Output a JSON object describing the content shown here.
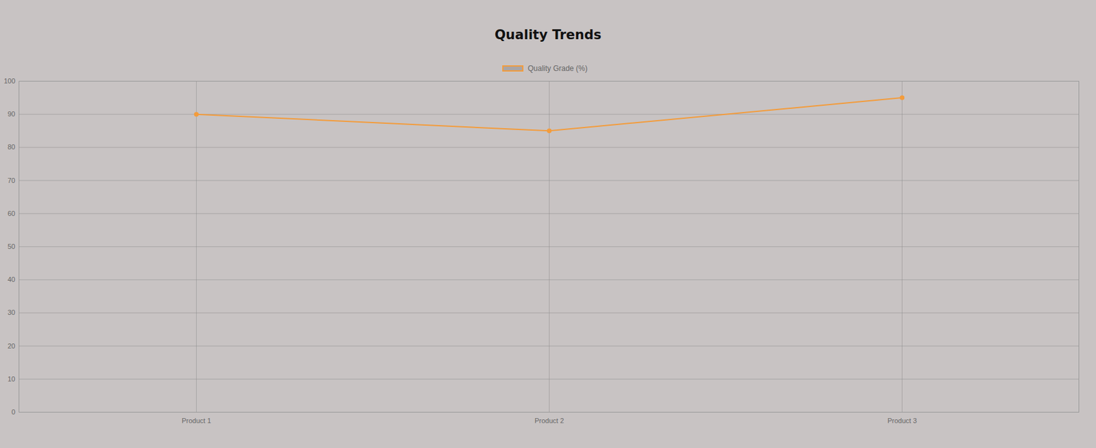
{
  "chart_data": {
    "type": "line",
    "title": "Quality Trends",
    "categories": [
      "Product 1",
      "Product 2",
      "Product 3"
    ],
    "series": [
      {
        "name": "Quality Grade (%)",
        "color": "#f39c3c",
        "values": [
          90,
          85,
          95
        ],
        "marker": "circle"
      }
    ],
    "ylim": [
      0,
      100
    ],
    "yticks": [
      0,
      10,
      20,
      30,
      40,
      50,
      60,
      70,
      80,
      90,
      100
    ],
    "grid": true,
    "legend": "top"
  }
}
